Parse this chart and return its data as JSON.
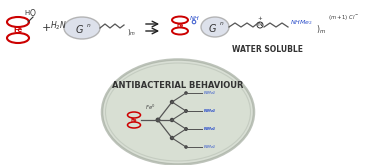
{
  "background_color": "#ffffff",
  "fig_width": 3.78,
  "fig_height": 1.65,
  "dpi": 100,
  "ferrocene_color": "#cc0000",
  "dendron_fill": "#d8dce8",
  "dendron_edge": "#aaaaaa",
  "arrow_color": "#222222",
  "chain_color": "#555555",
  "blue_group_color": "#3355cc",
  "water_soluble_text": "WATER SOLUBLE",
  "antibacterial_text": "ANTIBACTERIAL BEHAVIOUR",
  "fe_label": "Fe"
}
